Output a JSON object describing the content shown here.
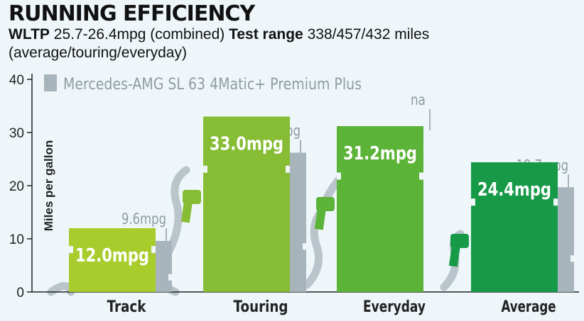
{
  "title": "RUNNING EFFICIENCY",
  "subtitle": {
    "wltp_label": "WLTP",
    "wltp_value": "25.7-26.4mpg (combined)",
    "range_label": "Test range",
    "range_value": "338/457/432 miles (average/touring/everyday)"
  },
  "colors": {
    "track": "#a8cc2c",
    "touring": "#86bd34",
    "everyday": "#5bb337",
    "average": "#169a48",
    "comparison": "#a8b4bc",
    "axis": "#222222"
  },
  "chart_data": {
    "type": "bar",
    "categories": [
      "Track",
      "Touring",
      "Everyday",
      "Average"
    ],
    "ylabel": "Miles per gallon",
    "ylim": [
      0,
      40
    ],
    "yticks": [
      0,
      10,
      20,
      30,
      40
    ],
    "series": [
      {
        "values": [
          12.0,
          33.0,
          31.2,
          24.4
        ],
        "labels": [
          "12.0mpg",
          "33.0mpg",
          "31.2mpg",
          "24.4mpg"
        ]
      },
      {
        "name": "Mercedes-AMG SL 63 4Matic+ Premium Plus",
        "values": [
          9.6,
          26.2,
          null,
          19.7
        ],
        "labels": [
          "9.6mpg",
          "26.2mpg",
          "na",
          "19.7mpg"
        ]
      }
    ]
  }
}
